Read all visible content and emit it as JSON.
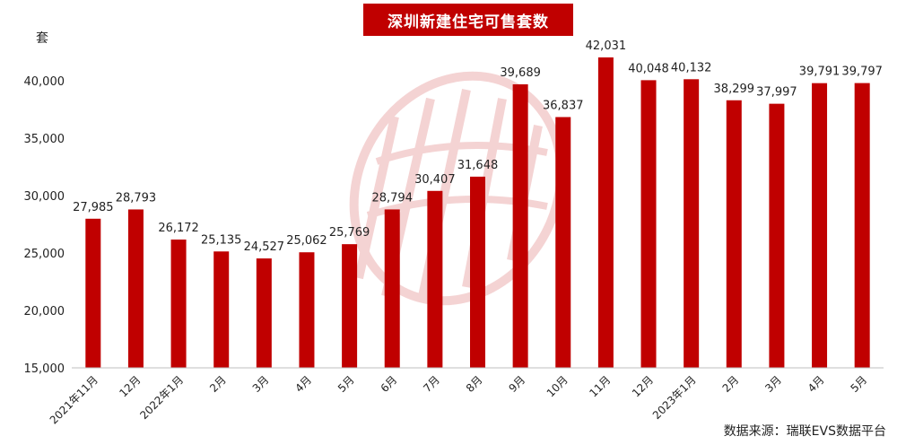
{
  "chart_data": {
    "type": "bar",
    "title": "深圳新建住宅可售套数",
    "ylabel": "套",
    "source": "数据来源：瑞联EVS数据平台",
    "ylim": [
      15000,
      42000
    ],
    "yticks": [
      "15,000",
      "20,000",
      "25,000",
      "30,000",
      "35,000",
      "40,000"
    ],
    "yticks_values": [
      15000,
      20000,
      25000,
      30000,
      35000,
      40000
    ],
    "categories": [
      "2021年11月",
      "12月",
      "2022年1月",
      "2月",
      "3月",
      "4月",
      "5月",
      "6月",
      "7月",
      "8月",
      "9月",
      "10月",
      "11月",
      "12月",
      "2023年1月",
      "2月",
      "3月",
      "4月",
      "5月"
    ],
    "values": [
      27985,
      28793,
      26172,
      25135,
      24527,
      25062,
      25769,
      28794,
      30407,
      31648,
      39689,
      36837,
      42031,
      40048,
      40132,
      38299,
      37997,
      39791,
      39797
    ],
    "value_labels": [
      "27,985",
      "28,793",
      "26,172",
      "25,135",
      "24,527",
      "25,062",
      "25,769",
      "28,794",
      "30,407",
      "31,648",
      "39,689",
      "36,837",
      "42,031",
      "40,048",
      "40,132",
      "38,299",
      "37,997",
      "39,791",
      "39,797"
    ],
    "bar_color": "#c00000",
    "watermark_color": "#e8a0a0",
    "grid": false,
    "legend": "none"
  }
}
